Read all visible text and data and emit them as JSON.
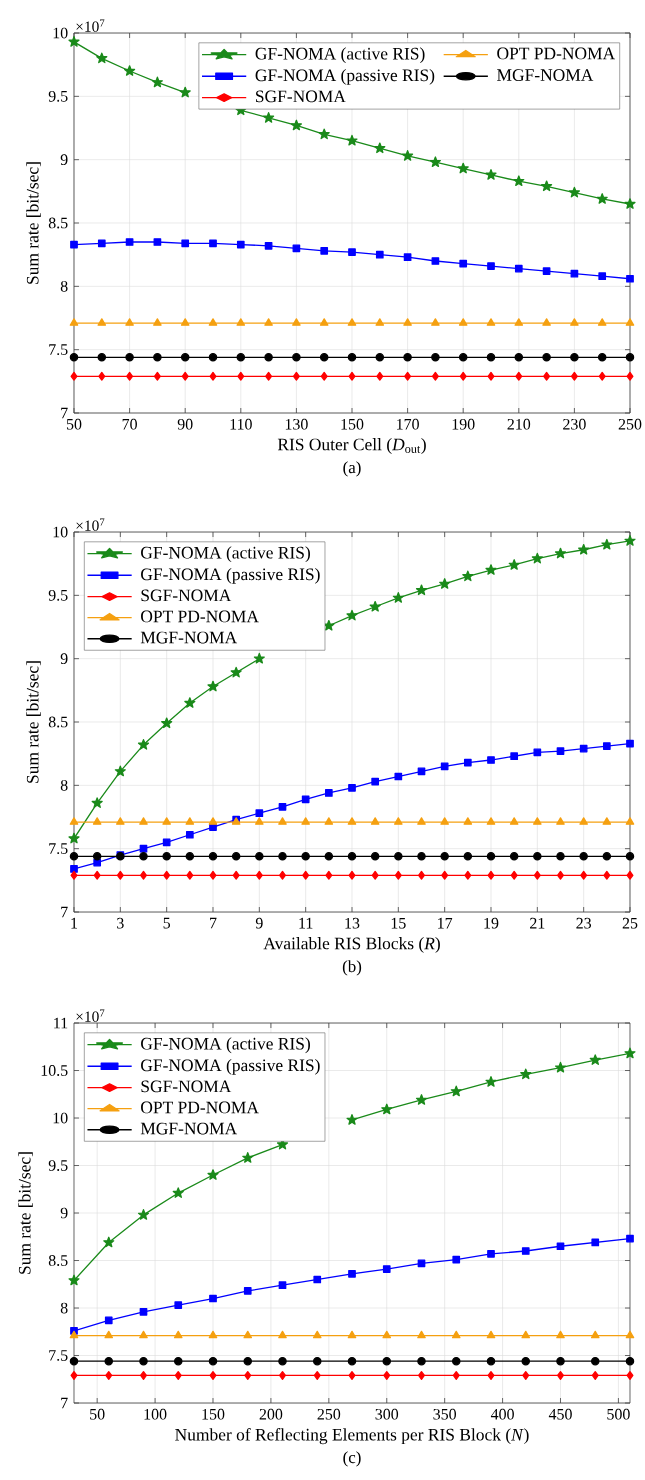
{
  "chart_data": [
    {
      "type": "line",
      "xlabel": "RIS Outer Cell (*D*$_{out}$)",
      "ylabel": "Sum rate [bit/sec]",
      "annotations": [
        "×10$^{7}$",
        "(a)"
      ],
      "x": [
        50,
        60,
        70,
        80,
        90,
        100,
        110,
        120,
        130,
        140,
        150,
        160,
        170,
        180,
        190,
        200,
        210,
        220,
        230,
        240,
        250
      ],
      "xlim": [
        50,
        250
      ],
      "xticks": [
        50,
        70,
        90,
        110,
        130,
        150,
        170,
        190,
        210,
        230,
        250
      ],
      "ylim": [
        7,
        10
      ],
      "yticks": [
        7,
        7.5,
        8,
        8.5,
        9,
        9.5,
        10
      ],
      "grid": true,
      "legend": "top right",
      "series": [
        {
          "name": "GF-NOMA (active RIS)",
          "color": "#1a8a1a",
          "marker": "star",
          "values": [
            9.93,
            9.8,
            9.7,
            9.61,
            9.53,
            null,
            9.39,
            9.33,
            9.27,
            9.2,
            9.15,
            9.09,
            9.03,
            8.98,
            8.93,
            8.88,
            8.83,
            8.79,
            8.74,
            8.69,
            8.65
          ]
        },
        {
          "name": "OPT PD-NOMA",
          "color": "#f5a010",
          "marker": "triangle",
          "values": [
            7.71,
            7.71,
            7.71,
            7.71,
            7.71,
            7.71,
            7.71,
            7.71,
            7.71,
            7.71,
            7.71,
            7.71,
            7.71,
            7.71,
            7.71,
            7.71,
            7.71,
            7.71,
            7.71,
            7.71,
            7.71
          ]
        },
        {
          "name": "GF-NOMA (passive RIS)",
          "color": "#0000ff",
          "marker": "square",
          "values": [
            8.33,
            8.34,
            8.35,
            8.35,
            8.34,
            8.34,
            8.33,
            8.32,
            8.3,
            8.28,
            8.27,
            8.25,
            8.23,
            8.2,
            8.18,
            8.16,
            8.14,
            8.12,
            8.1,
            8.08,
            8.06
          ]
        },
        {
          "name": "MGF-NOMA",
          "color": "#000000",
          "marker": "circle",
          "values": [
            7.44,
            7.44,
            7.44,
            7.44,
            7.44,
            7.44,
            7.44,
            7.44,
            7.44,
            7.44,
            7.44,
            7.44,
            7.44,
            7.44,
            7.44,
            7.44,
            7.44,
            7.44,
            7.44,
            7.44,
            7.44
          ]
        },
        {
          "name": "SGF-NOMA",
          "color": "#ff0000",
          "marker": "diamond",
          "values": [
            7.29,
            7.29,
            7.29,
            7.29,
            7.29,
            7.29,
            7.29,
            7.29,
            7.29,
            7.29,
            7.29,
            7.29,
            7.29,
            7.29,
            7.29,
            7.29,
            7.29,
            7.29,
            7.29,
            7.29,
            7.29
          ]
        }
      ]
    },
    {
      "type": "line",
      "xlabel": "Available RIS Blocks (*R*)",
      "ylabel": "Sum rate [bit/sec]",
      "annotations": [
        "×10$^{7}$",
        "(b)"
      ],
      "x": [
        1,
        2,
        3,
        4,
        5,
        6,
        7,
        8,
        9,
        10,
        11,
        12,
        13,
        14,
        15,
        16,
        17,
        18,
        19,
        20,
        21,
        22,
        23,
        24,
        25
      ],
      "xlim": [
        1,
        25
      ],
      "xticks": [
        1,
        3,
        5,
        7,
        9,
        11,
        13,
        15,
        17,
        19,
        21,
        23,
        25
      ],
      "ylim": [
        7,
        10
      ],
      "yticks": [
        7,
        7.5,
        8,
        8.5,
        9,
        9.5,
        10
      ],
      "grid": true,
      "legend": "top left",
      "series": [
        {
          "name": "GF-NOMA (active RIS)",
          "color": "#1a8a1a",
          "marker": "star",
          "values": [
            7.58,
            7.86,
            8.11,
            8.32,
            8.49,
            8.65,
            8.78,
            8.89,
            9.0,
            null,
            null,
            9.26,
            9.34,
            9.41,
            9.48,
            9.54,
            9.59,
            9.65,
            9.7,
            9.74,
            9.79,
            9.83,
            9.86,
            9.9,
            9.93
          ]
        },
        {
          "name": "GF-NOMA (passive RIS)",
          "color": "#0000ff",
          "marker": "square",
          "values": [
            7.34,
            7.39,
            7.45,
            7.5,
            7.55,
            7.61,
            7.67,
            7.73,
            7.78,
            7.83,
            7.89,
            7.94,
            7.98,
            8.03,
            8.07,
            8.11,
            8.15,
            8.18,
            8.2,
            8.23,
            8.26,
            8.27,
            8.29,
            8.31,
            8.33
          ]
        },
        {
          "name": "SGF-NOMA",
          "color": "#ff0000",
          "marker": "diamond",
          "values": [
            7.29,
            7.29,
            7.29,
            7.29,
            7.29,
            7.29,
            7.29,
            7.29,
            7.29,
            7.29,
            7.29,
            7.29,
            7.29,
            7.29,
            7.29,
            7.29,
            7.29,
            7.29,
            7.29,
            7.29,
            7.29,
            7.29,
            7.29,
            7.29,
            7.29
          ]
        },
        {
          "name": "OPT PD-NOMA",
          "color": "#f5a010",
          "marker": "triangle",
          "values": [
            7.71,
            7.71,
            7.71,
            7.71,
            7.71,
            7.71,
            7.71,
            7.71,
            7.71,
            7.71,
            7.71,
            7.71,
            7.71,
            7.71,
            7.71,
            7.71,
            7.71,
            7.71,
            7.71,
            7.71,
            7.71,
            7.71,
            7.71,
            7.71,
            7.71
          ]
        },
        {
          "name": "MGF-NOMA",
          "color": "#000000",
          "marker": "circle",
          "values": [
            7.44,
            7.44,
            7.44,
            7.44,
            7.44,
            7.44,
            7.44,
            7.44,
            7.44,
            7.44,
            7.44,
            7.44,
            7.44,
            7.44,
            7.44,
            7.44,
            7.44,
            7.44,
            7.44,
            7.44,
            7.44,
            7.44,
            7.44,
            7.44,
            7.44
          ]
        }
      ]
    },
    {
      "type": "line",
      "xlabel": "Number of Reflecting Elements per RIS Block (*N*)",
      "ylabel": "Sum rate [bit/sec]",
      "annotations": [
        "×10$^{7}$",
        "(c)"
      ],
      "x": [
        30,
        60,
        90,
        120,
        150,
        180,
        210,
        240,
        270,
        300,
        330,
        360,
        390,
        420,
        450,
        480,
        510
      ],
      "xlim": [
        30,
        510
      ],
      "xticks": [
        50,
        100,
        150,
        200,
        250,
        300,
        350,
        400,
        450,
        500
      ],
      "ylim": [
        7,
        11
      ],
      "yticks": [
        7,
        7.5,
        8,
        8.5,
        9,
        9.5,
        10,
        10.5,
        11
      ],
      "grid": true,
      "legend": "top left",
      "series": [
        {
          "name": "GF-NOMA (active RIS)",
          "color": "#1a8a1a",
          "marker": "star",
          "values": [
            8.29,
            8.69,
            8.98,
            9.21,
            9.4,
            9.58,
            9.72,
            null,
            9.98,
            10.09,
            10.19,
            10.28,
            10.38,
            10.46,
            10.53,
            10.61,
            10.68
          ]
        },
        {
          "name": "GF-NOMA (passive RIS)",
          "color": "#0000ff",
          "marker": "square",
          "values": [
            7.76,
            7.87,
            7.96,
            8.03,
            8.1,
            8.18,
            8.24,
            8.3,
            8.36,
            8.41,
            8.47,
            8.51,
            8.57,
            8.6,
            8.65,
            8.69,
            8.73
          ]
        },
        {
          "name": "SGF-NOMA",
          "color": "#ff0000",
          "marker": "diamond",
          "values": [
            7.29,
            7.29,
            7.29,
            7.29,
            7.29,
            7.29,
            7.29,
            7.29,
            7.29,
            7.29,
            7.29,
            7.29,
            7.29,
            7.29,
            7.29,
            7.29,
            7.29
          ]
        },
        {
          "name": "OPT PD-NOMA",
          "color": "#f5a010",
          "marker": "triangle",
          "values": [
            7.71,
            7.71,
            7.71,
            7.71,
            7.71,
            7.71,
            7.71,
            7.71,
            7.71,
            7.71,
            7.71,
            7.71,
            7.71,
            7.71,
            7.71,
            7.71,
            7.71
          ]
        },
        {
          "name": "MGF-NOMA",
          "color": "#000000",
          "marker": "circle",
          "values": [
            7.44,
            7.44,
            7.44,
            7.44,
            7.44,
            7.44,
            7.44,
            7.44,
            7.44,
            7.44,
            7.44,
            7.44,
            7.44,
            7.44,
            7.44,
            7.44,
            7.44
          ]
        }
      ]
    }
  ]
}
